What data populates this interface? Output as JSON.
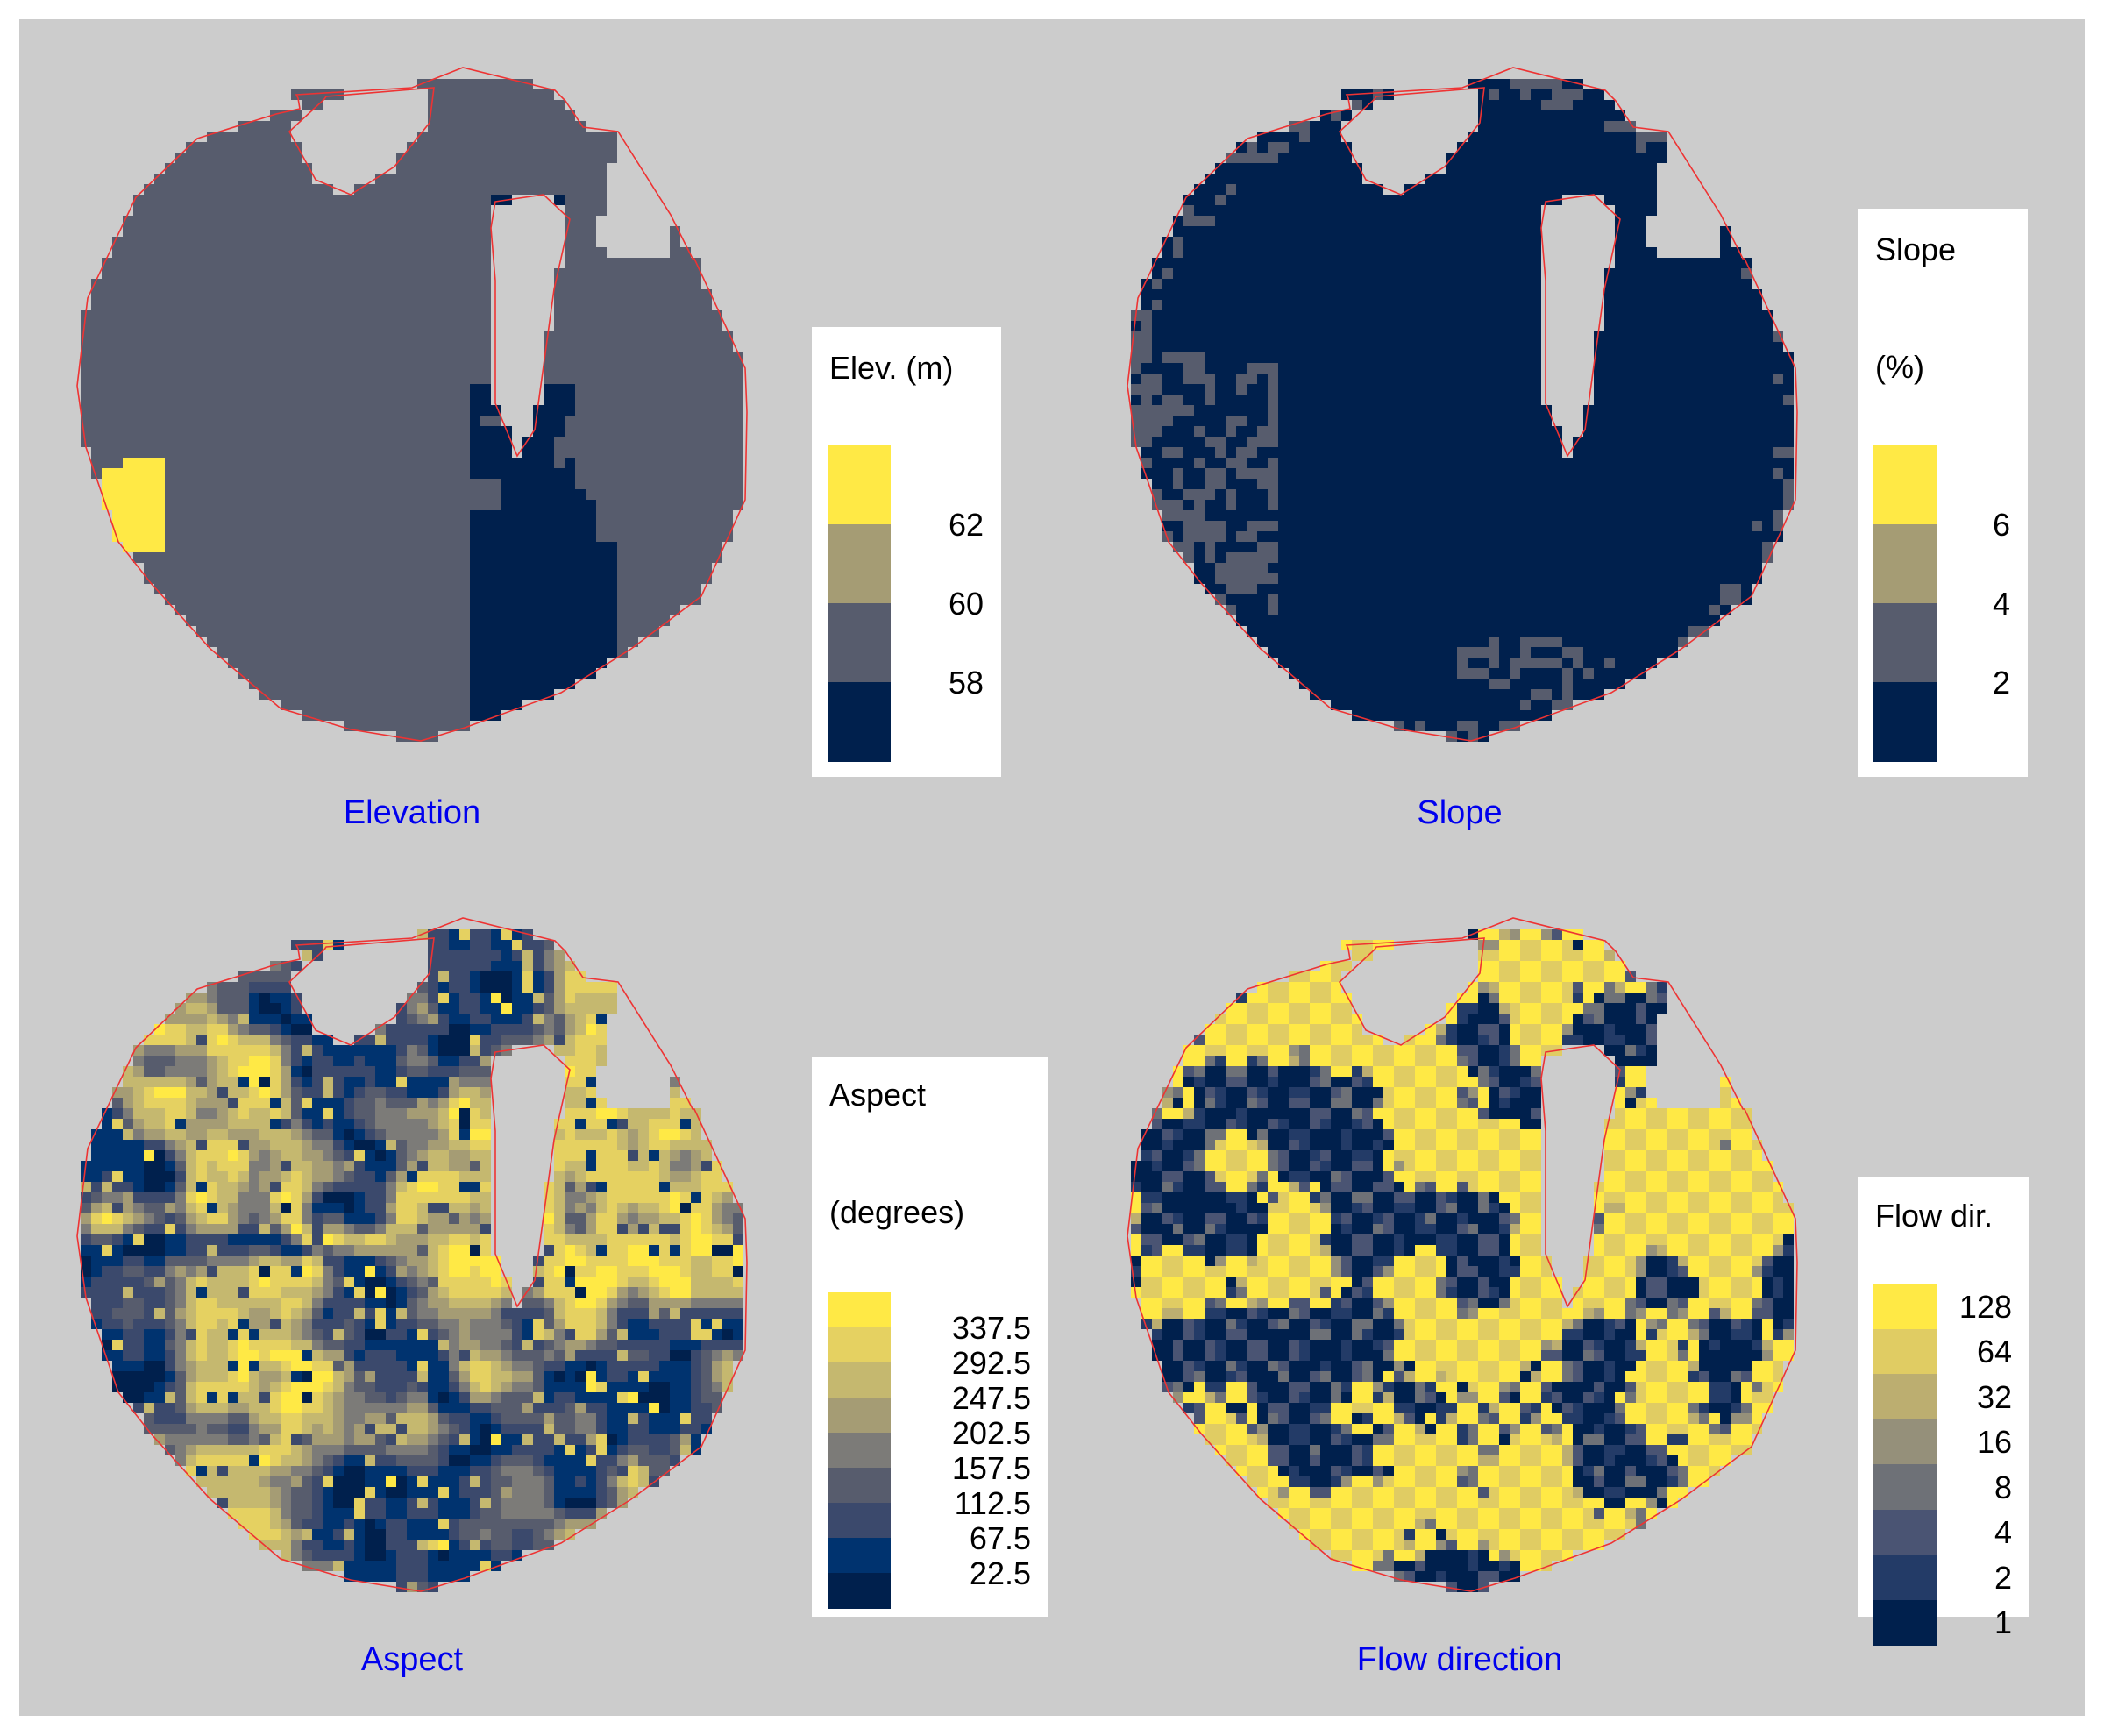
{
  "colors": {
    "background": "#cccccc",
    "outline": "#ee3333",
    "title": "#0000ee",
    "hole": "#cccccc"
  },
  "panels": [
    {
      "id": "elevation",
      "title": "Elevation",
      "legend": {
        "title_line1": "Elev. (m)",
        "title_line2": "",
        "style": "boundary",
        "colors": [
          "#ffe945",
          "#a59c74",
          "#575c6d",
          "#00204d"
        ],
        "labels": [
          "62",
          "60",
          "58"
        ]
      },
      "pattern": "elevation"
    },
    {
      "id": "slope",
      "title": "Slope",
      "legend": {
        "title_line1": "Slope",
        "title_line2": "(%)",
        "style": "boundary",
        "colors": [
          "#ffe945",
          "#a59c74",
          "#575c6d",
          "#00204d"
        ],
        "labels": [
          "6",
          "4",
          "2"
        ]
      },
      "pattern": "slope"
    },
    {
      "id": "aspect",
      "title": "Aspect",
      "legend": {
        "title_line1": "Aspect",
        "title_line2": "(degrees)",
        "style": "boundary",
        "colors": [
          "#ffe945",
          "#e5d161",
          "#c5b86f",
          "#a59c74",
          "#7c7b78",
          "#575c6d",
          "#3b496c",
          "#00336f",
          "#00204d"
        ],
        "labels": [
          "337.5",
          "292.5",
          "247.5",
          "202.5",
          "157.5",
          "112.5",
          "67.5",
          "22.5"
        ]
      },
      "pattern": "aspect"
    },
    {
      "id": "flow",
      "title": "Flow direction",
      "legend": {
        "title_line1": "Flow dir.",
        "title_line2": "",
        "style": "center",
        "colors": [
          "#ffe945",
          "#e0cc63",
          "#bcae70",
          "#95907a",
          "#6e7177",
          "#4a5473",
          "#233b67",
          "#00204d"
        ],
        "labels": [
          "128",
          "64",
          "32",
          "16",
          "8",
          "4",
          "2",
          "1"
        ]
      },
      "pattern": "flow"
    }
  ]
}
